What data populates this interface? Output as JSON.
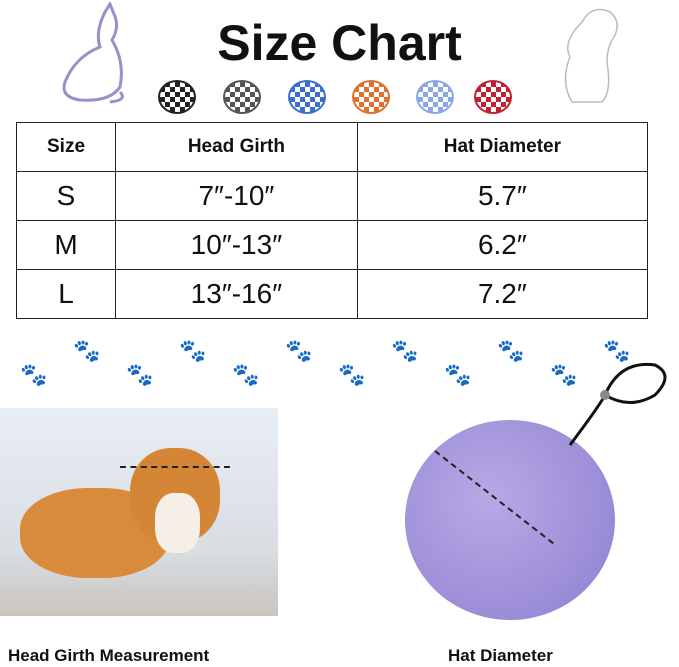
{
  "title": "Size Chart",
  "table": {
    "headers": [
      "Size",
      "Head Girth",
      "Hat Diameter"
    ],
    "rows": [
      [
        "S",
        "7″-10″",
        "5.7″"
      ],
      [
        "M",
        "10″-13″",
        "6.2″"
      ],
      [
        "L",
        "13″-16″",
        "7.2″"
      ]
    ]
  },
  "hat_colors": [
    "#222222",
    "#555555",
    "#3a6fd0",
    "#e07030",
    "#8aa8e8",
    "#c02030"
  ],
  "captions": {
    "left": "Head Girth Measurement",
    "right": "Hat Diameter"
  }
}
